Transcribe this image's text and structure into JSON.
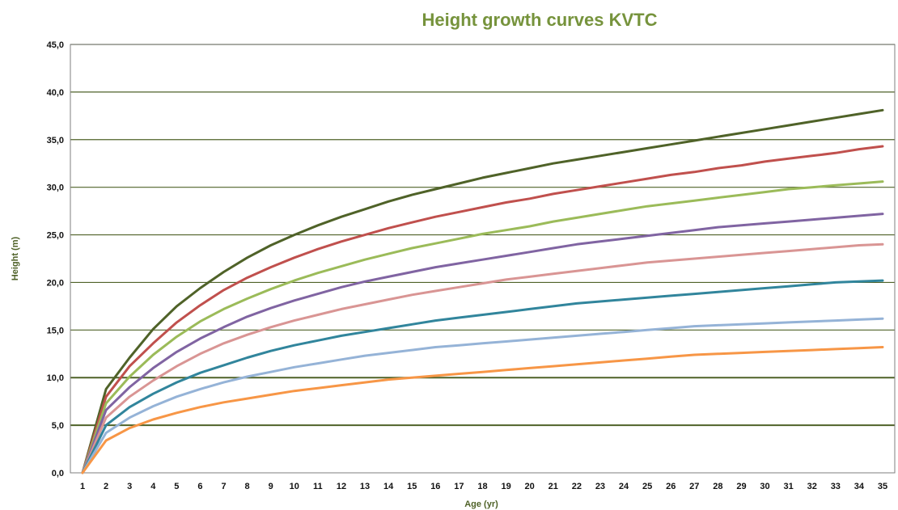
{
  "colors": {
    "title": "#76933c",
    "axis_title": "#4f6228",
    "grid": "#4f6228",
    "frame": "#7f7f7f"
  },
  "chart_data": {
    "type": "line",
    "title": "Height growth curves KVTC",
    "xlabel": "Age (yr)",
    "ylabel": "Height (m)",
    "ylim": [
      0,
      45
    ],
    "yticks": [
      "0,0",
      "5,0",
      "10,0",
      "15,0",
      "20,0",
      "25,0",
      "30,0",
      "35,0",
      "40,0",
      "45,0"
    ],
    "x": [
      1,
      2,
      3,
      4,
      5,
      6,
      7,
      8,
      9,
      10,
      11,
      12,
      13,
      14,
      15,
      16,
      17,
      18,
      19,
      20,
      21,
      22,
      23,
      24,
      25,
      26,
      27,
      28,
      29,
      30,
      31,
      32,
      33,
      34,
      35
    ],
    "grid": true,
    "legend": "none",
    "series": [
      {
        "color": "#4f6228",
        "values": [
          0,
          8.8,
          12.1,
          15.1,
          17.5,
          19.4,
          21.1,
          22.6,
          23.9,
          25.0,
          26.0,
          26.9,
          27.7,
          28.5,
          29.2,
          29.8,
          30.4,
          31.0,
          31.5,
          32.0,
          32.5,
          32.9,
          33.3,
          33.7,
          34.1,
          34.5,
          34.9,
          35.3,
          35.7,
          36.1,
          36.5,
          36.9,
          37.3,
          37.7,
          38.1
        ]
      },
      {
        "color": "#c0504d",
        "values": [
          0,
          8.0,
          11.2,
          13.6,
          15.8,
          17.6,
          19.2,
          20.5,
          21.6,
          22.6,
          23.5,
          24.3,
          25.0,
          25.7,
          26.3,
          26.9,
          27.4,
          27.9,
          28.4,
          28.8,
          29.3,
          29.7,
          30.1,
          30.5,
          30.9,
          31.3,
          31.6,
          32.0,
          32.3,
          32.7,
          33.0,
          33.3,
          33.6,
          34.0,
          34.3
        ]
      },
      {
        "color": "#9bbb59",
        "values": [
          0,
          7.3,
          10.1,
          12.4,
          14.3,
          15.9,
          17.2,
          18.3,
          19.3,
          20.2,
          21.0,
          21.7,
          22.4,
          23.0,
          23.6,
          24.1,
          24.6,
          25.1,
          25.5,
          25.9,
          26.4,
          26.8,
          27.2,
          27.6,
          28.0,
          28.3,
          28.6,
          28.9,
          29.2,
          29.5,
          29.8,
          30.0,
          30.2,
          30.4,
          30.6
        ]
      },
      {
        "color": "#8064a2",
        "values": [
          0,
          6.6,
          9.0,
          11.0,
          12.7,
          14.1,
          15.3,
          16.4,
          17.3,
          18.1,
          18.8,
          19.5,
          20.1,
          20.6,
          21.1,
          21.6,
          22.0,
          22.4,
          22.8,
          23.2,
          23.6,
          24.0,
          24.3,
          24.6,
          24.9,
          25.2,
          25.5,
          25.8,
          26.0,
          26.2,
          26.4,
          26.6,
          26.8,
          27.0,
          27.2
        ]
      },
      {
        "color": "#d99594",
        "values": [
          0,
          5.8,
          8.0,
          9.7,
          11.2,
          12.5,
          13.6,
          14.5,
          15.3,
          16.0,
          16.6,
          17.2,
          17.7,
          18.2,
          18.7,
          19.1,
          19.5,
          19.9,
          20.3,
          20.6,
          20.9,
          21.2,
          21.5,
          21.8,
          22.1,
          22.3,
          22.5,
          22.7,
          22.9,
          23.1,
          23.3,
          23.5,
          23.7,
          23.9,
          24.0
        ]
      },
      {
        "color": "#31859c",
        "values": [
          0,
          5.0,
          6.9,
          8.3,
          9.5,
          10.5,
          11.3,
          12.1,
          12.8,
          13.4,
          13.9,
          14.4,
          14.8,
          15.2,
          15.6,
          16.0,
          16.3,
          16.6,
          16.9,
          17.2,
          17.5,
          17.8,
          18.0,
          18.2,
          18.4,
          18.6,
          18.8,
          19.0,
          19.2,
          19.4,
          19.6,
          19.8,
          20.0,
          20.1,
          20.2
        ]
      },
      {
        "color": "#95b3d7",
        "values": [
          0,
          4.2,
          5.8,
          7.0,
          8.0,
          8.8,
          9.5,
          10.1,
          10.6,
          11.1,
          11.5,
          11.9,
          12.3,
          12.6,
          12.9,
          13.2,
          13.4,
          13.6,
          13.8,
          14.0,
          14.2,
          14.4,
          14.6,
          14.8,
          15.0,
          15.2,
          15.4,
          15.5,
          15.6,
          15.7,
          15.8,
          15.9,
          16.0,
          16.1,
          16.2
        ]
      },
      {
        "color": "#f79646",
        "values": [
          0,
          3.4,
          4.7,
          5.6,
          6.3,
          6.9,
          7.4,
          7.8,
          8.2,
          8.6,
          8.9,
          9.2,
          9.5,
          9.8,
          10.0,
          10.2,
          10.4,
          10.6,
          10.8,
          11.0,
          11.2,
          11.4,
          11.6,
          11.8,
          12.0,
          12.2,
          12.4,
          12.5,
          12.6,
          12.7,
          12.8,
          12.9,
          13.0,
          13.1,
          13.2
        ]
      }
    ]
  }
}
